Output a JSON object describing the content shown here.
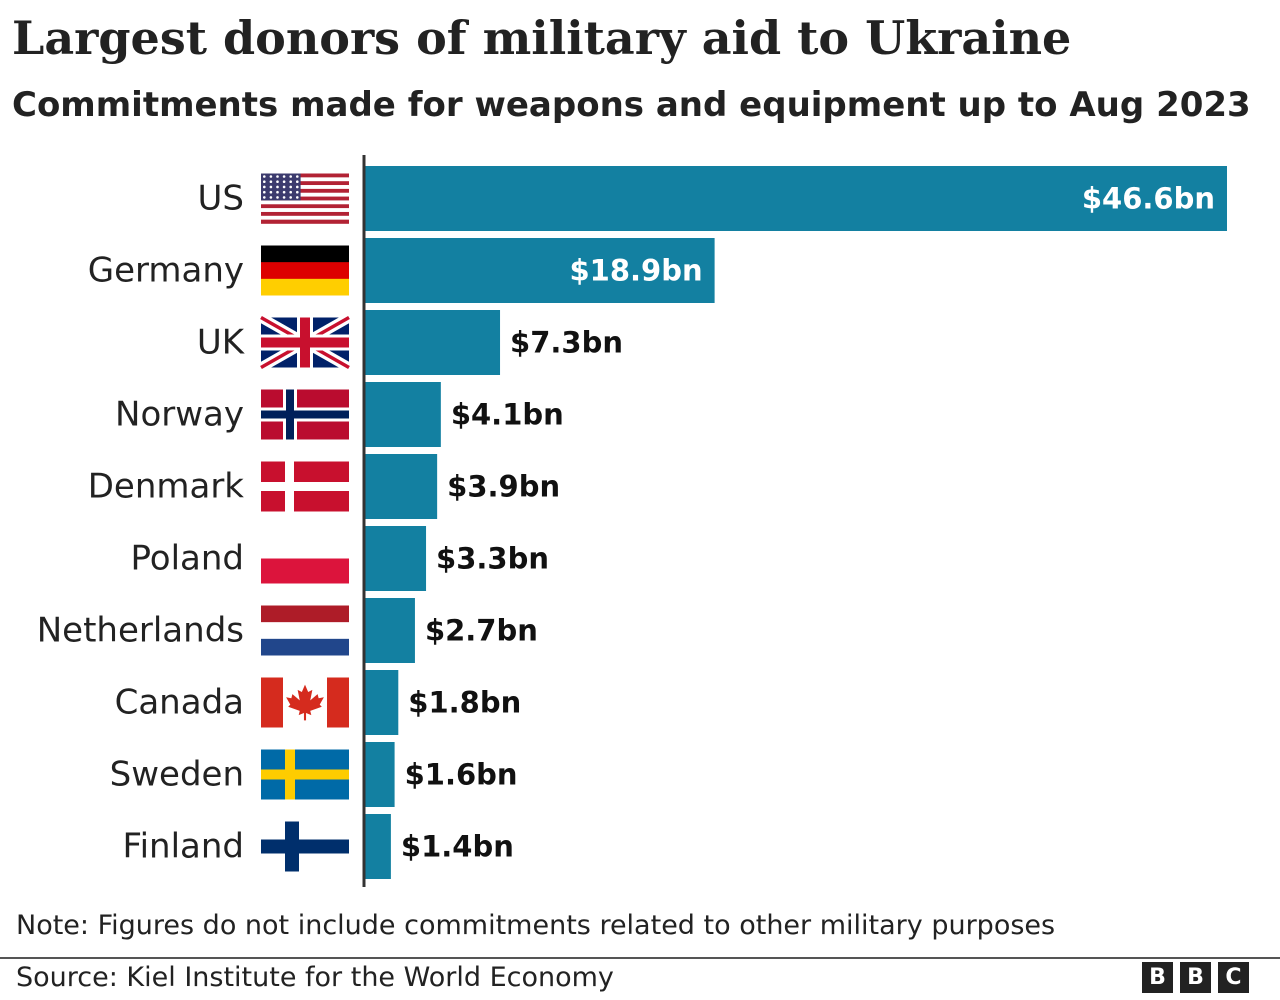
{
  "chart_data": {
    "type": "bar",
    "orientation": "horizontal",
    "title": "Largest donors of military aid to Ukraine",
    "subtitle": "Commitments made for weapons and equipment up to Aug 2023",
    "categories": [
      "US",
      "Germany",
      "UK",
      "Norway",
      "Denmark",
      "Poland",
      "Netherlands",
      "Canada",
      "Sweden",
      "Finland"
    ],
    "values": [
      46.6,
      18.9,
      7.3,
      4.1,
      3.9,
      3.3,
      2.7,
      1.8,
      1.6,
      1.4
    ],
    "value_labels": [
      "$46.6bn",
      "$18.9bn",
      "$7.3bn",
      "$4.1bn",
      "$3.9bn",
      "$3.3bn",
      "$2.7bn",
      "$1.8bn",
      "$1.6bn",
      "$1.4bn"
    ],
    "xlim": [
      0,
      46.6
    ],
    "flags": [
      "us-flag-icon",
      "germany-flag-icon",
      "uk-flag-icon",
      "norway-flag-icon",
      "denmark-flag-icon",
      "poland-flag-icon",
      "netherlands-flag-icon",
      "canada-flag-icon",
      "sweden-flag-icon",
      "finland-flag-icon"
    ],
    "bar_color": "#1380a1",
    "grid": false,
    "legend": "none"
  },
  "footer": {
    "note": "Note: Figures do not include commitments related to other military purposes",
    "source": "Source: Kiel Institute for the World Economy",
    "logo": [
      "B",
      "B",
      "C"
    ]
  }
}
